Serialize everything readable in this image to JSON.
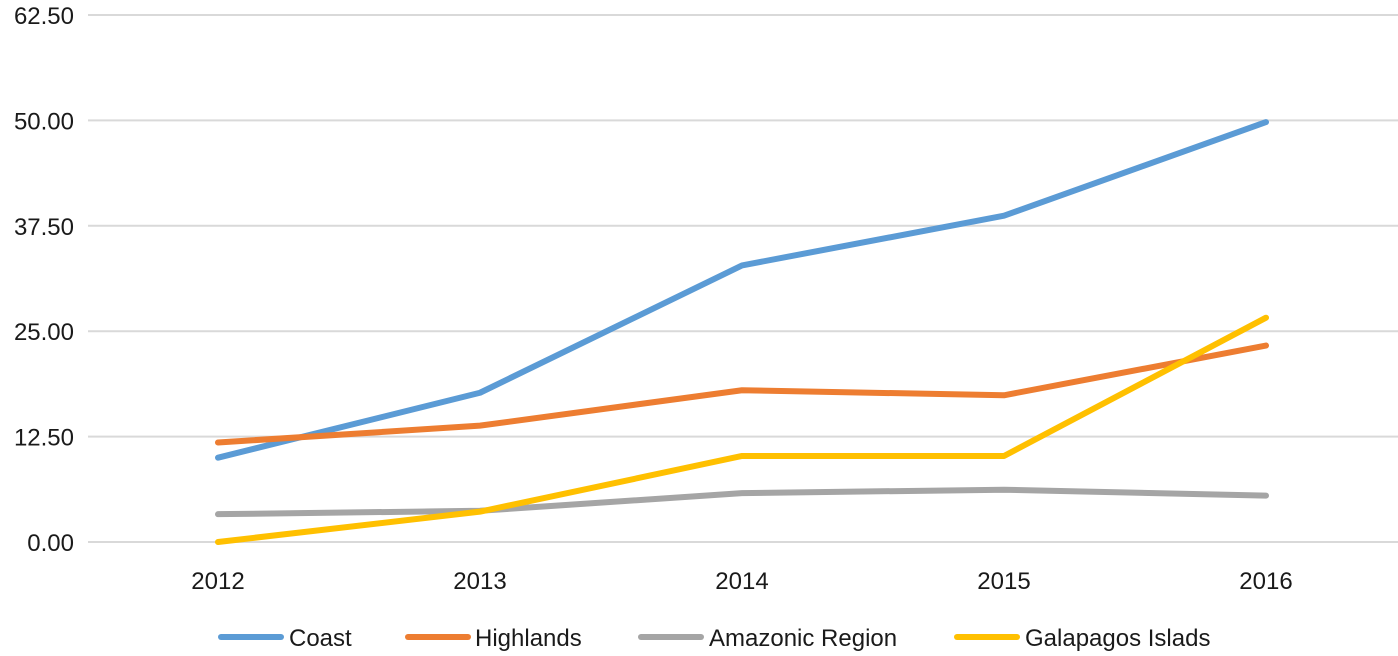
{
  "chart_data": {
    "type": "line",
    "title": "",
    "xlabel": "",
    "ylabel": "",
    "categories": [
      "2012",
      "2013",
      "2014",
      "2015",
      "2016"
    ],
    "ylim": [
      0,
      62.5
    ],
    "yticks": [
      "0.00",
      "12.50",
      "25.00",
      "37.50",
      "50.00",
      "62.50"
    ],
    "grid": true,
    "legend_position": "bottom",
    "series": [
      {
        "name": "Coast",
        "color": "#5b9bd5",
        "values": [
          10.0,
          17.7,
          32.8,
          38.7,
          49.8
        ]
      },
      {
        "name": "Highlands",
        "color": "#ed7d31",
        "values": [
          11.8,
          13.8,
          18.0,
          17.4,
          23.3
        ]
      },
      {
        "name": "Amazonic Region",
        "color": "#a5a5a5",
        "values": [
          3.3,
          3.7,
          5.8,
          6.2,
          5.5
        ]
      },
      {
        "name": "Galapagos Islads",
        "color": "#ffc000",
        "values": [
          0.0,
          3.6,
          10.2,
          10.2,
          26.6
        ]
      }
    ]
  }
}
